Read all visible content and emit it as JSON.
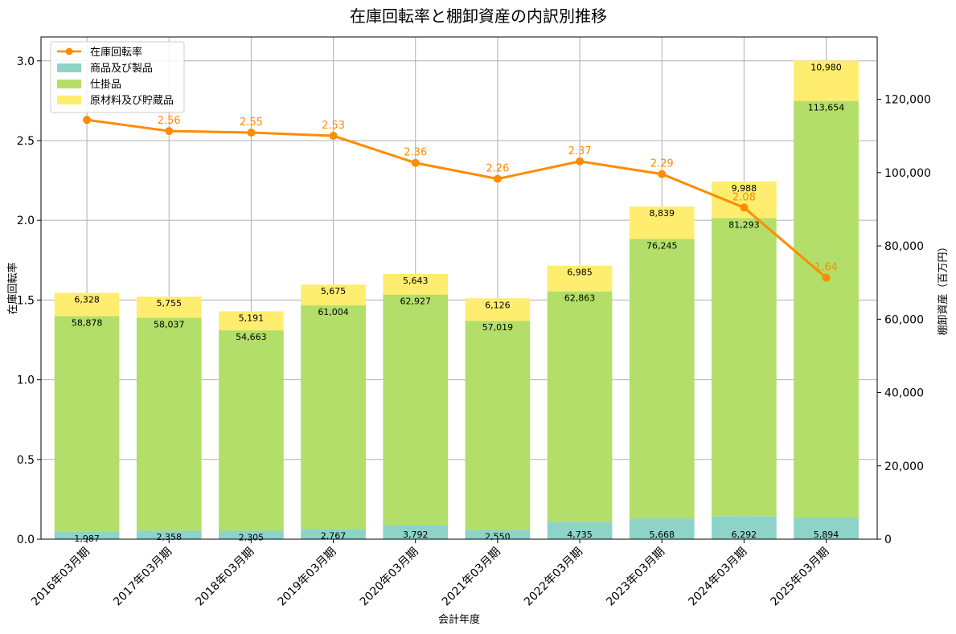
{
  "chart_data": {
    "type": "bar",
    "title": "在庫回転率と棚卸資産の内訳別推移",
    "xlabel": "会計年度",
    "ylabel_left": "在庫回転率",
    "ylabel_right": "棚卸資産（百万円）",
    "ylim_left": [
      0,
      3.15
    ],
    "ylim_right": [
      0,
      137000
    ],
    "yticks_left": [
      "0.0",
      "0.5",
      "1.0",
      "1.5",
      "2.0",
      "2.5",
      "3.0"
    ],
    "yticks_right": [
      "0",
      "20,000",
      "40,000",
      "60,000",
      "80,000",
      "100,000",
      "120,000"
    ],
    "categories": [
      "2016年03月期",
      "2017年03月期",
      "2018年03月期",
      "2019年03月期",
      "2020年03月期",
      "2021年03月期",
      "2022年03月期",
      "2023年03月期",
      "2024年03月期",
      "2025年03月期"
    ],
    "series": [
      {
        "name": "商品及び製品",
        "color": "#8dd3c7",
        "values": [
          1987,
          2358,
          2305,
          2767,
          3792,
          2550,
          4735,
          5668,
          6292,
          5894
        ],
        "labels": [
          "1,987",
          "2,358",
          "2,305",
          "2,767",
          "3,792",
          "2,550",
          "4,735",
          "5,668",
          "6,292",
          "5,894"
        ]
      },
      {
        "name": "仕掛品",
        "color": "#b3de69",
        "values": [
          58878,
          58037,
          54663,
          61004,
          62927,
          57019,
          62863,
          76245,
          81293,
          113654
        ],
        "labels": [
          "58,878",
          "58,037",
          "54,663",
          "61,004",
          "62,927",
          "57,019",
          "62,863",
          "76,245",
          "81,293",
          "113,654"
        ]
      },
      {
        "name": "原材料及び貯蔵品",
        "color": "#ffed6f",
        "values": [
          6328,
          5755,
          5191,
          5675,
          5643,
          6126,
          6985,
          8839,
          9988,
          10980
        ],
        "labels": [
          "6,328",
          "5,755",
          "5,191",
          "5,675",
          "5,643",
          "6,126",
          "6,985",
          "8,839",
          "9,988",
          "10,980"
        ]
      }
    ],
    "line": {
      "name": "在庫回転率",
      "color": "#ff8c00",
      "values": [
        2.63,
        2.56,
        2.55,
        2.53,
        2.36,
        2.26,
        2.37,
        2.29,
        2.08,
        1.64
      ],
      "labels": [
        "",
        "2.56",
        "2.55",
        "2.53",
        "2.36",
        "2.26",
        "2.37",
        "2.29",
        "2.08",
        "1.64"
      ]
    },
    "legend": [
      "在庫回転率",
      "商品及び製品",
      "仕掛品",
      "原材料及び貯蔵品"
    ],
    "legend_position": "top-left",
    "grid": true
  }
}
